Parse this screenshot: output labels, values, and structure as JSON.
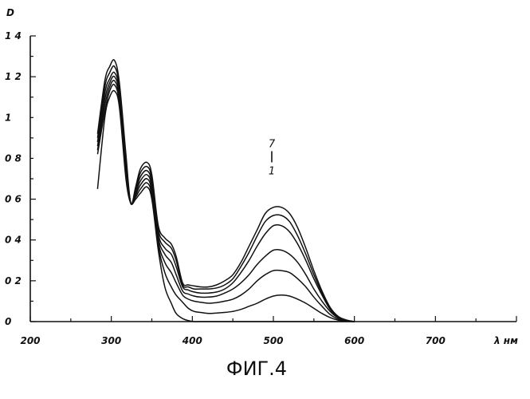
{
  "figure_caption": "ФИГ.4",
  "chart_data": {
    "type": "line",
    "ylabel": "D",
    "xlabel": "λ нм",
    "xlim": [
      200,
      800
    ],
    "ylim": [
      0,
      1.4
    ],
    "x_ticks": [
      200,
      300,
      400,
      500,
      600,
      700
    ],
    "x_tick_labels": [
      "200",
      "300",
      "400",
      "500",
      "600",
      "700"
    ],
    "y_ticks": [
      0,
      0.2,
      0.4,
      0.6,
      0.8,
      1.0,
      1.2,
      1.4
    ],
    "y_tick_labels": [
      "0",
      "0 2",
      "0 4",
      "0 6",
      "0 8",
      "1",
      "1 2",
      "1 4"
    ],
    "grid": false,
    "annotation": {
      "top": "7",
      "bottom": "1",
      "x": 500,
      "y": 0.8
    },
    "series": [
      {
        "peaks": [
          1.13,
          0.66,
          0.03
        ],
        "x": [
          283,
          292,
          298,
          304,
          310,
          318,
          324,
          330,
          336,
          344,
          350,
          358,
          366,
          374,
          380,
          388,
          395,
          402,
          410,
          420,
          430,
          440,
          450,
          460,
          470,
          480,
          490,
          500,
          510,
          520,
          530,
          540,
          550,
          560,
          570,
          580,
          590,
          600
        ],
        "y": [
          0.65,
          1.0,
          1.1,
          1.13,
          1.05,
          0.7,
          0.58,
          0.6,
          0.63,
          0.66,
          0.6,
          0.35,
          0.17,
          0.09,
          0.04,
          0.015,
          0.005,
          0,
          0,
          0,
          0,
          0,
          0,
          0,
          0,
          0,
          0,
          0,
          0,
          0,
          0,
          0,
          0,
          0,
          0,
          0,
          0,
          0
        ]
      },
      {
        "peaks": [
          1.16,
          0.68,
          0.13
        ],
        "x": [
          283,
          292,
          298,
          304,
          310,
          318,
          324,
          330,
          336,
          344,
          350,
          358,
          366,
          374,
          380,
          388,
          395,
          402,
          410,
          420,
          430,
          440,
          450,
          460,
          470,
          480,
          490,
          500,
          510,
          520,
          530,
          540,
          550,
          560,
          570,
          580,
          590,
          600
        ],
        "y": [
          0.82,
          1.03,
          1.13,
          1.16,
          1.07,
          0.72,
          0.58,
          0.61,
          0.65,
          0.68,
          0.62,
          0.37,
          0.24,
          0.17,
          0.13,
          0.095,
          0.065,
          0.05,
          0.045,
          0.04,
          0.042,
          0.045,
          0.05,
          0.06,
          0.075,
          0.09,
          0.11,
          0.125,
          0.13,
          0.125,
          0.11,
          0.09,
          0.065,
          0.04,
          0.02,
          0.007,
          0.002,
          0
        ]
      },
      {
        "peaks": [
          1.18,
          0.7,
          0.25
        ],
        "x": [
          283,
          292,
          298,
          304,
          310,
          318,
          324,
          330,
          336,
          344,
          350,
          358,
          366,
          374,
          380,
          388,
          395,
          402,
          410,
          420,
          430,
          440,
          450,
          460,
          470,
          480,
          490,
          500,
          510,
          520,
          530,
          540,
          550,
          560,
          570,
          580,
          590,
          600
        ],
        "y": [
          0.84,
          1.06,
          1.15,
          1.18,
          1.09,
          0.74,
          0.58,
          0.62,
          0.67,
          0.7,
          0.64,
          0.39,
          0.29,
          0.24,
          0.19,
          0.13,
          0.11,
          0.1,
          0.095,
          0.09,
          0.093,
          0.1,
          0.11,
          0.13,
          0.16,
          0.2,
          0.23,
          0.25,
          0.25,
          0.24,
          0.21,
          0.17,
          0.12,
          0.075,
          0.035,
          0.012,
          0.003,
          0
        ]
      },
      {
        "peaks": [
          1.2,
          0.72,
          0.35
        ],
        "x": [
          283,
          292,
          298,
          304,
          310,
          318,
          324,
          330,
          336,
          344,
          350,
          358,
          366,
          374,
          380,
          388,
          395,
          402,
          410,
          420,
          430,
          440,
          450,
          460,
          470,
          480,
          490,
          500,
          510,
          520,
          530,
          540,
          550,
          560,
          570,
          580,
          590,
          600
        ],
        "y": [
          0.86,
          1.09,
          1.17,
          1.2,
          1.11,
          0.76,
          0.58,
          0.63,
          0.69,
          0.72,
          0.66,
          0.41,
          0.33,
          0.29,
          0.23,
          0.15,
          0.135,
          0.125,
          0.12,
          0.12,
          0.125,
          0.14,
          0.16,
          0.19,
          0.23,
          0.28,
          0.32,
          0.35,
          0.35,
          0.33,
          0.29,
          0.23,
          0.16,
          0.1,
          0.05,
          0.018,
          0.005,
          0
        ]
      },
      {
        "peaks": [
          1.22,
          0.74,
          0.47
        ],
        "x": [
          283,
          292,
          298,
          304,
          310,
          318,
          324,
          330,
          336,
          344,
          350,
          358,
          366,
          374,
          380,
          388,
          395,
          402,
          410,
          420,
          430,
          440,
          450,
          460,
          470,
          480,
          490,
          500,
          510,
          520,
          530,
          540,
          550,
          560,
          570,
          580,
          590,
          600
        ],
        "y": [
          0.88,
          1.12,
          1.19,
          1.22,
          1.13,
          0.78,
          0.58,
          0.64,
          0.71,
          0.74,
          0.68,
          0.43,
          0.36,
          0.33,
          0.27,
          0.17,
          0.155,
          0.145,
          0.14,
          0.14,
          0.145,
          0.16,
          0.19,
          0.24,
          0.3,
          0.37,
          0.43,
          0.47,
          0.47,
          0.44,
          0.38,
          0.3,
          0.21,
          0.13,
          0.06,
          0.022,
          0.006,
          0
        ]
      },
      {
        "peaks": [
          1.25,
          0.76,
          0.52
        ],
        "x": [
          283,
          292,
          298,
          304,
          310,
          318,
          324,
          330,
          336,
          344,
          350,
          358,
          366,
          374,
          380,
          388,
          395,
          402,
          410,
          420,
          430,
          440,
          450,
          460,
          470,
          480,
          490,
          500,
          510,
          520,
          530,
          540,
          550,
          560,
          570,
          580,
          590,
          600
        ],
        "y": [
          0.9,
          1.15,
          1.22,
          1.25,
          1.15,
          0.8,
          0.58,
          0.65,
          0.73,
          0.76,
          0.7,
          0.45,
          0.39,
          0.36,
          0.3,
          0.18,
          0.17,
          0.16,
          0.16,
          0.16,
          0.165,
          0.18,
          0.21,
          0.27,
          0.34,
          0.42,
          0.49,
          0.52,
          0.52,
          0.49,
          0.42,
          0.33,
          0.23,
          0.14,
          0.065,
          0.024,
          0.007,
          0
        ]
      },
      {
        "peaks": [
          1.28,
          0.78,
          0.56
        ],
        "x": [
          283,
          292,
          298,
          304,
          310,
          318,
          324,
          330,
          336,
          344,
          350,
          358,
          366,
          374,
          380,
          388,
          395,
          402,
          410,
          420,
          430,
          440,
          450,
          460,
          470,
          480,
          490,
          500,
          510,
          520,
          530,
          540,
          550,
          560,
          570,
          580,
          590,
          600
        ],
        "y": [
          0.92,
          1.18,
          1.25,
          1.28,
          1.17,
          0.82,
          0.58,
          0.66,
          0.75,
          0.78,
          0.72,
          0.47,
          0.41,
          0.38,
          0.32,
          0.19,
          0.18,
          0.175,
          0.17,
          0.17,
          0.18,
          0.2,
          0.23,
          0.29,
          0.37,
          0.45,
          0.53,
          0.56,
          0.56,
          0.53,
          0.46,
          0.36,
          0.25,
          0.15,
          0.07,
          0.026,
          0.008,
          0
        ]
      }
    ]
  }
}
